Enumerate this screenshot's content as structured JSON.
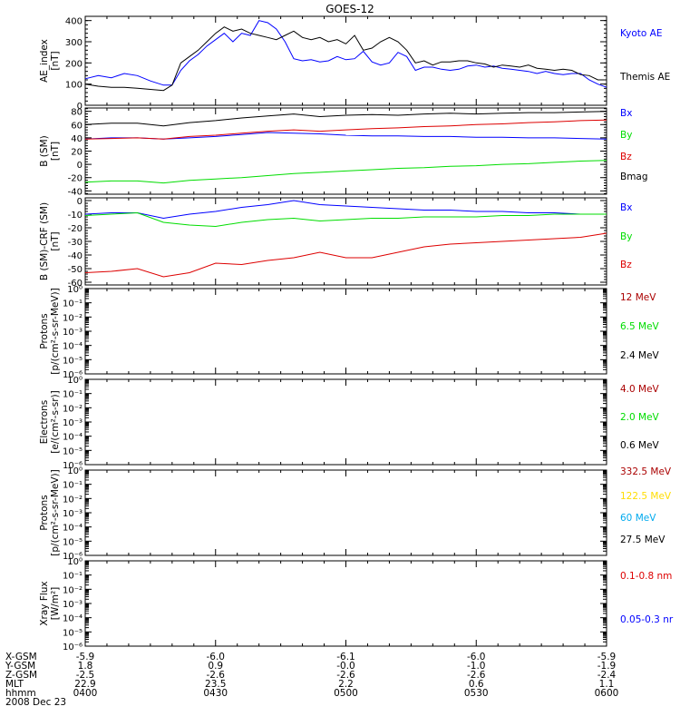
{
  "title": "GOES-12",
  "colors": {
    "black": "#000000",
    "blue": "#0000ff",
    "red": "#dd0000",
    "green": "#00dd00",
    "yellow": "#ffdd00",
    "cyan": "#00aaee",
    "darkred": "#aa0000"
  },
  "chart_data": [
    {
      "type": "line",
      "id": "ae",
      "ylabel_lines": [
        "AE_index",
        "[nT]"
      ],
      "ylim": [
        0,
        420
      ],
      "yscale": "linear",
      "yticks": [
        {
          "v": 0,
          "label": "0"
        },
        {
          "v": 100,
          "label": "100"
        },
        {
          "v": 200,
          "label": "200"
        },
        {
          "v": 300,
          "label": "300"
        },
        {
          "v": 400,
          "label": "400"
        }
      ],
      "x": [
        0,
        3,
        6,
        9,
        12,
        15,
        18,
        20,
        22,
        24,
        26,
        28,
        30,
        32,
        34,
        36,
        38,
        40,
        42,
        44,
        46,
        48,
        50,
        52,
        54,
        56,
        58,
        60,
        62,
        64,
        66,
        68,
        70,
        72,
        74,
        76,
        78,
        80,
        82,
        84,
        86,
        88,
        90,
        92,
        94,
        96,
        98,
        100,
        102,
        104,
        106,
        108,
        110,
        112,
        114,
        116,
        118,
        120
      ],
      "series": [
        {
          "name": "Kyoto AE",
          "color": "#0000ff",
          "values": [
            125,
            140,
            130,
            150,
            140,
            115,
            95,
            95,
            165,
            210,
            240,
            280,
            310,
            340,
            300,
            340,
            330,
            400,
            390,
            360,
            300,
            220,
            210,
            215,
            205,
            210,
            230,
            215,
            220,
            255,
            205,
            190,
            200,
            250,
            230,
            165,
            180,
            180,
            170,
            165,
            170,
            185,
            190,
            180,
            185,
            175,
            170,
            165,
            160,
            150,
            160,
            150,
            145,
            150,
            150,
            120,
            100,
            85
          ]
        },
        {
          "name": "Themis AE",
          "color": "#000000",
          "values": [
            100,
            90,
            85,
            85,
            80,
            75,
            70,
            95,
            200,
            230,
            260,
            300,
            340,
            370,
            350,
            360,
            340,
            330,
            320,
            310,
            330,
            350,
            320,
            310,
            320,
            300,
            310,
            290,
            330,
            260,
            270,
            300,
            320,
            300,
            260,
            200,
            210,
            190,
            205,
            205,
            210,
            210,
            200,
            195,
            180,
            190,
            185,
            180,
            190,
            175,
            170,
            165,
            170,
            165,
            145,
            140,
            120,
            120
          ]
        }
      ]
    },
    {
      "type": "line",
      "id": "b",
      "ylabel_lines": [
        "B (SM)",
        "[nT]"
      ],
      "ylim": [
        -45,
        85
      ],
      "yscale": "linear",
      "yticks": [
        {
          "v": -40,
          "label": "-40"
        },
        {
          "v": -20,
          "label": "-20"
        },
        {
          "v": 0,
          "label": "0"
        },
        {
          "v": 20,
          "label": "20"
        },
        {
          "v": 40,
          "label": "40"
        },
        {
          "v": 60,
          "label": "60"
        },
        {
          "v": 80,
          "label": "80"
        }
      ],
      "x": [
        0,
        6,
        12,
        18,
        24,
        30,
        36,
        42,
        48,
        54,
        60,
        66,
        72,
        78,
        84,
        90,
        96,
        102,
        108,
        114,
        120
      ],
      "series": [
        {
          "name": "Bx",
          "color": "#0000ff",
          "values": [
            38,
            40,
            40,
            38,
            40,
            42,
            45,
            48,
            47,
            46,
            44,
            43,
            43,
            42,
            42,
            41,
            41,
            40,
            40,
            39,
            38
          ]
        },
        {
          "name": "By",
          "color": "#00dd00",
          "values": [
            -27,
            -25,
            -25,
            -28,
            -24,
            -22,
            -20,
            -17,
            -14,
            -12,
            -10,
            -8,
            -6,
            -5,
            -3,
            -2,
            0,
            1,
            3,
            5,
            6
          ]
        },
        {
          "name": "Bz",
          "color": "#dd0000",
          "values": [
            38,
            39,
            40,
            38,
            42,
            44,
            47,
            50,
            52,
            50,
            52,
            54,
            55,
            57,
            58,
            60,
            61,
            63,
            64,
            66,
            67
          ]
        },
        {
          "name": "Bmag",
          "color": "#000000",
          "values": [
            60,
            62,
            62,
            58,
            63,
            66,
            70,
            73,
            76,
            72,
            74,
            75,
            74,
            76,
            77,
            76,
            77,
            78,
            78,
            79,
            80
          ]
        }
      ]
    },
    {
      "type": "line",
      "id": "bdiff",
      "ylabel_lines": [
        "B (SM)-CRF (SM)",
        "[nT]"
      ],
      "ylim": [
        -62,
        2
      ],
      "yscale": "linear",
      "yticks": [
        {
          "v": -60,
          "label": "-60"
        },
        {
          "v": -50,
          "label": "-50"
        },
        {
          "v": -40,
          "label": "-40"
        },
        {
          "v": -30,
          "label": "-30"
        },
        {
          "v": -20,
          "label": "-20"
        },
        {
          "v": -10,
          "label": "-10"
        },
        {
          "v": 0,
          "label": "0"
        }
      ],
      "x": [
        0,
        6,
        12,
        18,
        24,
        30,
        36,
        42,
        48,
        54,
        60,
        66,
        72,
        78,
        84,
        90,
        96,
        102,
        108,
        114,
        120
      ],
      "series": [
        {
          "name": "Bx",
          "color": "#0000ff",
          "values": [
            -10,
            -9,
            -9,
            -13,
            -10,
            -8,
            -5,
            -3,
            0,
            -3,
            -4,
            -5,
            -6,
            -7,
            -7,
            -8,
            -8,
            -9,
            -9,
            -10,
            -10
          ]
        },
        {
          "name": "By",
          "color": "#00dd00",
          "values": [
            -11,
            -10,
            -9,
            -16,
            -18,
            -19,
            -16,
            -14,
            -13,
            -15,
            -14,
            -13,
            -13,
            -12,
            -12,
            -12,
            -11,
            -11,
            -10,
            -10,
            -10
          ]
        },
        {
          "name": "Bz",
          "color": "#dd0000",
          "values": [
            -53,
            -52,
            -50,
            -56,
            -53,
            -46,
            -47,
            -44,
            -42,
            -38,
            -42,
            -42,
            -38,
            -34,
            -32,
            -31,
            -30,
            -29,
            -28,
            -27,
            -24
          ]
        }
      ]
    },
    {
      "type": "line",
      "id": "protons1",
      "ylabel_lines": [
        "Protons",
        "[p/(cm²-s-sr-MeV)]"
      ],
      "ylim": [
        -6,
        0
      ],
      "yscale": "log",
      "yticks": [
        {
          "v": 0,
          "label": "10⁰"
        },
        {
          "v": -1,
          "label": "10⁻¹"
        },
        {
          "v": -2,
          "label": "10⁻²"
        },
        {
          "v": -3,
          "label": "10⁻³"
        },
        {
          "v": -4,
          "label": "10⁻⁴"
        },
        {
          "v": -5,
          "label": "10⁻⁵"
        },
        {
          "v": -6,
          "label": "10⁻⁶"
        }
      ],
      "legend": [
        {
          "name": "12 MeV",
          "color": "#aa0000"
        },
        {
          "name": "6.5 MeV",
          "color": "#00dd00"
        },
        {
          "name": "2.4 MeV",
          "color": "#000000"
        }
      ]
    },
    {
      "type": "line",
      "id": "electrons",
      "ylabel_lines": [
        "Electrons",
        "[e/(cm²-s-sr)]"
      ],
      "ylim": [
        -6,
        0
      ],
      "yscale": "log",
      "yticks": [
        {
          "v": 0,
          "label": "10⁰"
        },
        {
          "v": -1,
          "label": "10⁻¹"
        },
        {
          "v": -2,
          "label": "10⁻²"
        },
        {
          "v": -3,
          "label": "10⁻³"
        },
        {
          "v": -4,
          "label": "10⁻⁴"
        },
        {
          "v": -5,
          "label": "10⁻⁵"
        },
        {
          "v": -6,
          "label": "10⁻⁶"
        }
      ],
      "legend": [
        {
          "name": "4.0 MeV",
          "color": "#aa0000"
        },
        {
          "name": "2.0 MeV",
          "color": "#00dd00"
        },
        {
          "name": "0.6 MeV",
          "color": "#000000"
        }
      ]
    },
    {
      "type": "line",
      "id": "protons2",
      "ylabel_lines": [
        "Protons",
        "[p/(cm²-s-sr-MeV)]"
      ],
      "ylim": [
        -6,
        0
      ],
      "yscale": "log",
      "yticks": [
        {
          "v": 0,
          "label": "10⁰"
        },
        {
          "v": -1,
          "label": "10⁻¹"
        },
        {
          "v": -2,
          "label": "10⁻²"
        },
        {
          "v": -3,
          "label": "10⁻³"
        },
        {
          "v": -4,
          "label": "10⁻⁴"
        },
        {
          "v": -5,
          "label": "10⁻⁵"
        },
        {
          "v": -6,
          "label": "10⁻⁶"
        }
      ],
      "legend": [
        {
          "name": "332.5 MeV",
          "color": "#aa0000"
        },
        {
          "name": "122.5 MeV",
          "color": "#ffdd00"
        },
        {
          "name": "60 MeV",
          "color": "#00aaee"
        },
        {
          "name": "27.5 MeV",
          "color": "#000000"
        }
      ]
    },
    {
      "type": "line",
      "id": "xray",
      "ylabel_lines": [
        "Xray Flux",
        "[W/m²]"
      ],
      "ylim": [
        -6,
        0
      ],
      "yscale": "log",
      "yticks": [
        {
          "v": 0,
          "label": "10⁰"
        },
        {
          "v": -1,
          "label": "10⁻¹"
        },
        {
          "v": -2,
          "label": "10⁻²"
        },
        {
          "v": -3,
          "label": "10⁻³"
        },
        {
          "v": -4,
          "label": "10⁻⁴"
        },
        {
          "v": -5,
          "label": "10⁻⁵"
        },
        {
          "v": -6,
          "label": "10⁻⁶"
        }
      ],
      "legend": [
        {
          "name": "0.1-0.8 nm",
          "color": "#dd0000"
        },
        {
          "name": "0.05-0.3 nr",
          "color": "#0000ff"
        }
      ]
    }
  ],
  "x_axis": {
    "xlim": [
      0,
      120
    ],
    "tick_minutes": [
      0,
      30,
      60,
      90,
      120
    ],
    "row_labels": [
      "X-GSM",
      "Y-GSM",
      "Z-GSM",
      "MLT",
      "hhmm",
      "2008 Dec 23"
    ],
    "rows": [
      [
        "-5.9",
        "-6.0",
        "-6.1",
        "-6.0",
        "-5.9"
      ],
      [
        "1.8",
        "0.9",
        "-0.0",
        "-1.0",
        "-1.9"
      ],
      [
        "-2.5",
        "-2.6",
        "-2.6",
        "-2.6",
        "-2.4"
      ],
      [
        "22.9",
        "23.5",
        "2.2",
        "0.6",
        "1.1"
      ],
      [
        "0400",
        "0430",
        "0500",
        "0530",
        "0600"
      ]
    ]
  }
}
